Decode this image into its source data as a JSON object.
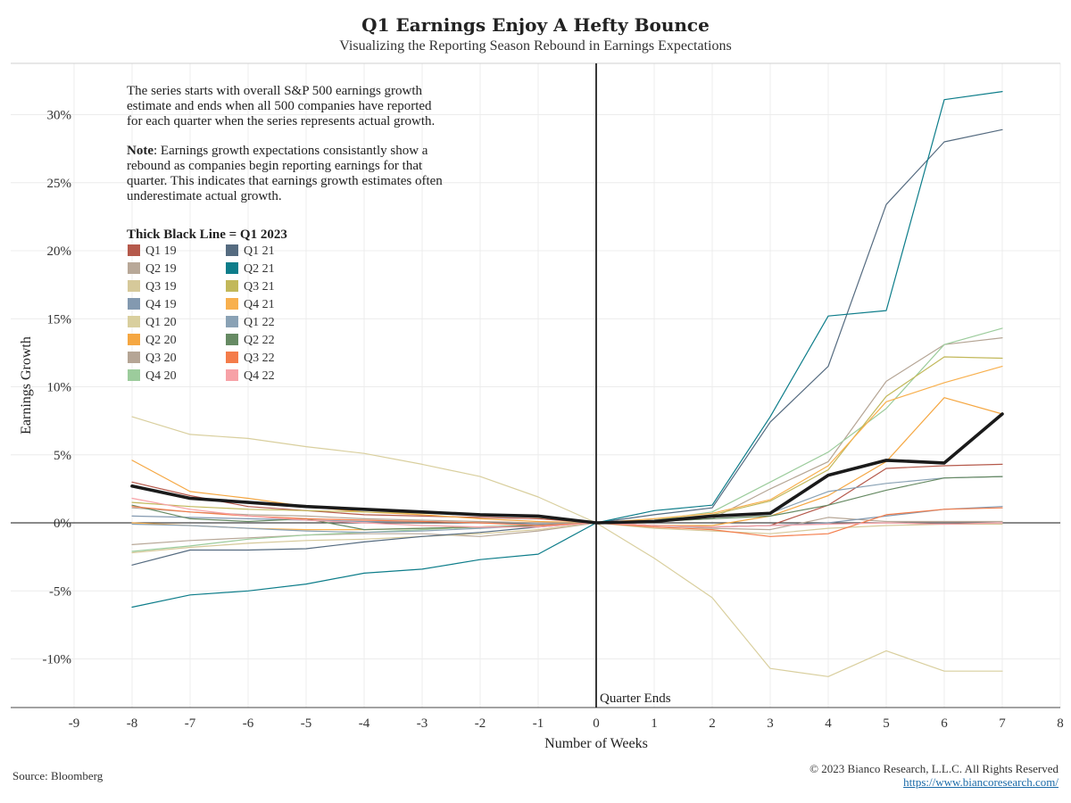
{
  "header": {
    "title": "Q1 Earnings Enjoy A Hefty Bounce",
    "subtitle": "Visualizing the Reporting Season Rebound in Earnings Expectations"
  },
  "footer": {
    "source": "Source: Bloomberg",
    "copyright": "© 2023 Bianco Research, L.L.C. All Rights Reserved",
    "url": "https://www.biancoresearch.com/"
  },
  "annotation": {
    "line1": "The series starts with overall S&P 500 earnings growth",
    "line2": "estimate and ends when all 500 companies have reported",
    "line3": "for each quarter when the series represents actual growth.",
    "note_bold": "Note",
    "note1": ": Earnings growth expectations consistantly show a",
    "note2": "rebound as companies begin reporting earnings for that",
    "note3": "quarter. This indicates that earnings growth estimates often",
    "note4": "underestimate actual growth.",
    "legend_title": "Thick Black Line = Q1 2023",
    "quarter_ends": "Quarter Ends"
  },
  "chart_data": {
    "type": "line",
    "title": "Q1 Earnings Enjoy A Hefty Bounce",
    "subtitle": "Visualizing the Reporting Season Rebound in Earnings Expectations",
    "xlabel": "Number of Weeks",
    "ylabel": "Earnings Growth",
    "xlim": [
      -9.3,
      8.3
    ],
    "ylim": [
      -13.5,
      34
    ],
    "x_ticks": [
      -9,
      -8,
      -7,
      -6,
      -5,
      -4,
      -3,
      -2,
      -1,
      0,
      1,
      2,
      3,
      4,
      5,
      6,
      7,
      8
    ],
    "y_ticks": [
      -10,
      -5,
      0,
      5,
      10,
      15,
      20,
      25,
      30
    ],
    "y_tick_labels": [
      "-10%",
      "-5%",
      "0%",
      "5%",
      "10%",
      "15%",
      "20%",
      "25%",
      "30%"
    ],
    "grid": true,
    "legend_position": "left",
    "x": [
      -8,
      -7,
      -6,
      -5,
      -4,
      -3,
      -2,
      -1,
      0,
      1,
      2,
      3,
      4,
      5,
      6,
      7
    ],
    "series": [
      {
        "name": "Q1 19",
        "color": "#b5594b",
        "values": [
          3.0,
          2.0,
          1.2,
          0.9,
          0.6,
          0.5,
          0.4,
          0.3,
          0,
          -0.2,
          -0.3,
          -0.2,
          1.3,
          4.0,
          4.2,
          4.3
        ]
      },
      {
        "name": "Q2 19",
        "color": "#b8a898",
        "values": [
          -1.6,
          -1.3,
          -1.1,
          -0.9,
          -0.8,
          -0.8,
          -1.0,
          -0.6,
          0,
          -0.2,
          -0.4,
          -0.5,
          0.4,
          0.1,
          0.1,
          0.1
        ]
      },
      {
        "name": "Q3 19",
        "color": "#d6c99a",
        "values": [
          -2.2,
          -1.8,
          -1.5,
          -1.3,
          -1.2,
          -1.0,
          -0.8,
          -0.5,
          0,
          -0.4,
          -0.6,
          -0.8,
          -0.4,
          -0.2,
          -0.1,
          -0.1
        ]
      },
      {
        "name": "Q4 19",
        "color": "#8399b0",
        "values": [
          0.5,
          0.4,
          0.3,
          0.2,
          0.1,
          0.1,
          0.0,
          -0.1,
          0,
          -0.2,
          -0.3,
          -0.2,
          0.0,
          0.5,
          1.0,
          1.2
        ]
      },
      {
        "name": "Q1 20",
        "color": "#d9cf9e",
        "values": [
          7.8,
          6.5,
          6.2,
          5.6,
          5.1,
          4.3,
          3.4,
          1.9,
          0,
          -2.6,
          -5.5,
          -10.7,
          -11.3,
          -9.4,
          -10.9,
          -10.9
        ]
      },
      {
        "name": "Q2 20",
        "color": "#f5a742",
        "values": [
          4.6,
          2.3,
          1.8,
          1.2,
          0.8,
          0.6,
          0.3,
          0.1,
          0,
          -0.2,
          -0.2,
          0.5,
          2.0,
          4.5,
          9.2,
          8.0
        ]
      },
      {
        "name": "Q3 20",
        "color": "#b5a595",
        "values": [
          1.1,
          0.8,
          0.6,
          0.5,
          0.3,
          0.2,
          0.1,
          0.0,
          0,
          0.1,
          0.3,
          2.5,
          4.5,
          10.4,
          13.1,
          13.6
        ]
      },
      {
        "name": "Q4 20",
        "color": "#9ccc9c",
        "values": [
          -2.1,
          -1.7,
          -1.2,
          -0.9,
          -0.7,
          -0.5,
          -0.3,
          -0.2,
          0,
          0.2,
          0.8,
          3.0,
          5.2,
          8.4,
          13.1,
          14.3
        ]
      },
      {
        "name": "Q1 21",
        "color": "#556b80",
        "values": [
          -3.1,
          -2.0,
          -2.0,
          -1.9,
          -1.4,
          -1.0,
          -0.7,
          -0.3,
          0,
          0.6,
          1.1,
          7.4,
          11.5,
          23.4,
          28.0,
          28.9
        ]
      },
      {
        "name": "Q2 21",
        "color": "#0d7d8a",
        "values": [
          -6.2,
          -5.3,
          -5.0,
          -4.5,
          -3.7,
          -3.4,
          -2.7,
          -2.3,
          0,
          0.9,
          1.3,
          7.8,
          15.2,
          15.6,
          31.1,
          31.7
        ]
      },
      {
        "name": "Q3 21",
        "color": "#c2b85a",
        "values": [
          1.5,
          1.2,
          1.0,
          0.9,
          0.8,
          0.7,
          0.6,
          0.4,
          0,
          0.2,
          0.6,
          1.6,
          3.9,
          9.3,
          12.2,
          12.1
        ]
      },
      {
        "name": "Q4 21",
        "color": "#f8b04e",
        "values": [
          0.0,
          -0.2,
          -0.4,
          -0.5,
          -0.5,
          -0.4,
          -0.3,
          -0.2,
          0,
          0.3,
          0.7,
          1.7,
          4.2,
          8.9,
          10.3,
          11.5
        ]
      },
      {
        "name": "Q1 22",
        "color": "#8aa2b5",
        "values": [
          -0.1,
          -0.2,
          -0.4,
          -0.6,
          -0.7,
          -0.6,
          -0.4,
          -0.2,
          0,
          0.2,
          0.5,
          0.7,
          2.3,
          2.9,
          3.3,
          3.4
        ]
      },
      {
        "name": "Q2 22",
        "color": "#668a63",
        "values": [
          1.3,
          0.3,
          0.1,
          0.3,
          -0.5,
          -0.4,
          -0.3,
          -0.2,
          0,
          0.1,
          0.3,
          0.5,
          1.3,
          2.4,
          3.3,
          3.4
        ]
      },
      {
        "name": "Q3 22",
        "color": "#f47c4a",
        "values": [
          1.2,
          0.8,
          0.5,
          0.3,
          0.2,
          0.1,
          0.0,
          -0.2,
          0,
          -0.3,
          -0.5,
          -1.0,
          -0.8,
          0.6,
          1.0,
          1.1
        ]
      },
      {
        "name": "Q4 22",
        "color": "#f7a1a7",
        "values": [
          1.8,
          1.0,
          0.5,
          0.2,
          0.0,
          -0.2,
          -0.3,
          -0.3,
          0,
          -0.2,
          -0.3,
          -0.2,
          -0.1,
          0.0,
          -0.1,
          0.0
        ]
      },
      {
        "name": "Q1 2023",
        "color": "#1a1a1a",
        "thick": true,
        "values": [
          2.7,
          1.8,
          1.5,
          1.2,
          1.0,
          0.8,
          0.6,
          0.5,
          0,
          0.1,
          0.5,
          0.7,
          3.5,
          4.6,
          4.4,
          8.0
        ]
      }
    ]
  }
}
